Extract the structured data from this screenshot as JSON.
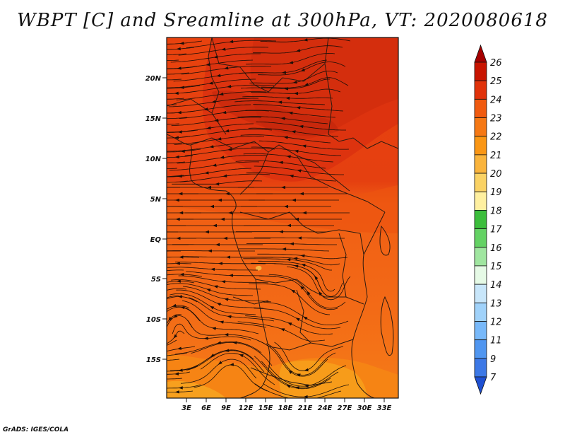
{
  "title": "WBPT [C] and Sreamline at 300hPa, VT: 2020080618",
  "footer": "GrADS: IGES/COLA",
  "map": {
    "lat_ticks": [
      "20N",
      "15N",
      "10N",
      "5N",
      "EQ",
      "5S",
      "10S",
      "15S"
    ],
    "lon_ticks": [
      "3E",
      "6E",
      "9E",
      "12E",
      "15E",
      "18E",
      "21E",
      "24E",
      "27E",
      "30E",
      "33E"
    ],
    "variable": "WBPT [C]",
    "level": "300hPa",
    "valid_time": "2020080618"
  },
  "colorbar": {
    "labels": [
      "26",
      "25",
      "24",
      "23",
      "22",
      "21",
      "20",
      "19",
      "18",
      "17",
      "16",
      "15",
      "14",
      "13",
      "12",
      "11",
      "9",
      "7"
    ],
    "colors": [
      "#a50000",
      "#c81400",
      "#e1320a",
      "#f05a0f",
      "#f57814",
      "#fa9614",
      "#fab43c",
      "#fad264",
      "#fff0a0",
      "#3cbe3c",
      "#64d264",
      "#a0e6a0",
      "#e6fae6",
      "#c8e6fa",
      "#a0d2fa",
      "#78b9fa",
      "#5096f0",
      "#3c78e6",
      "#1e50d2"
    ]
  }
}
